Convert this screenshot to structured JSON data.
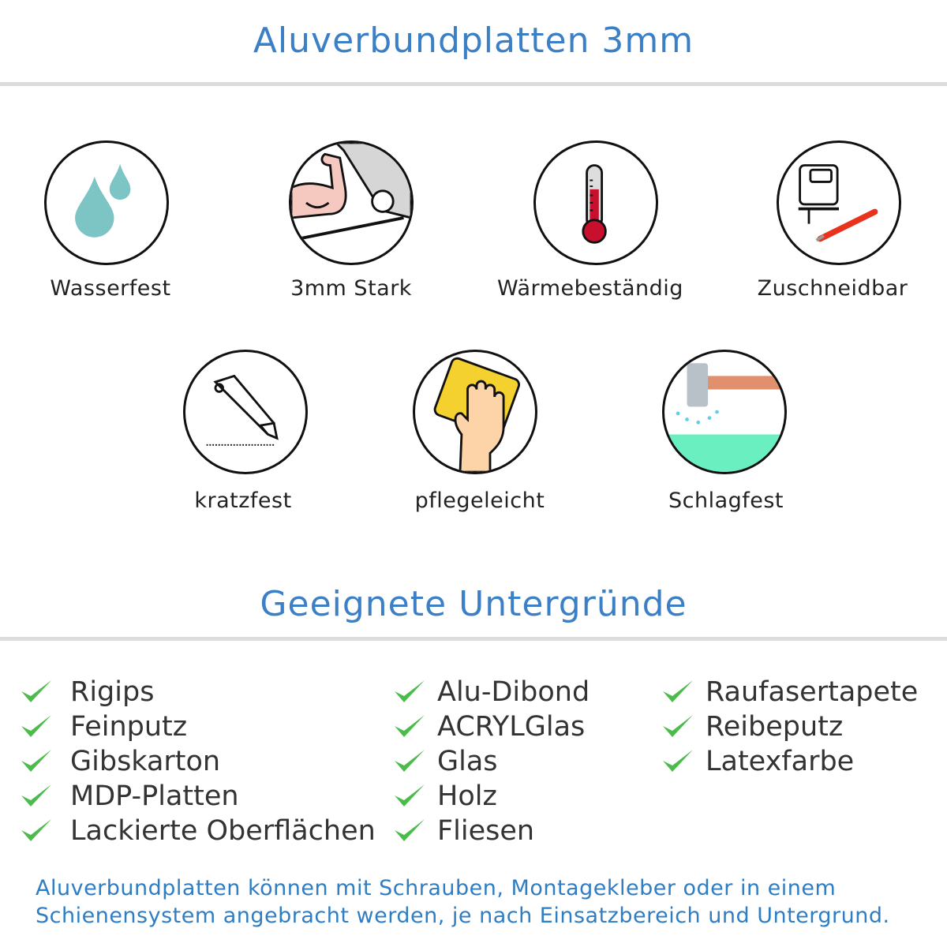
{
  "header": {
    "title": "Aluverbundplatten 3mm"
  },
  "features": [
    {
      "label": "Wasserfest",
      "icon": "water-drops-icon"
    },
    {
      "label": "3mm Stark",
      "icon": "strong-arm-icon"
    },
    {
      "label": "Wärmebeständig",
      "icon": "thermometer-icon"
    },
    {
      "label": "Zuschneidbar",
      "icon": "jigsaw-cutter-icon"
    },
    {
      "label": "kratzfest",
      "icon": "box-cutter-icon"
    },
    {
      "label": "pflegeleicht",
      "icon": "cleaning-hand-icon"
    },
    {
      "label": "Schlagfest",
      "icon": "hammer-icon"
    }
  ],
  "surfaces": {
    "title": "Geeignete Untergründe",
    "col1": [
      "Rigips",
      "Feinputz",
      "Gibskarton",
      "MDP-Platten",
      "Lackierte Oberflächen"
    ],
    "col2": [
      "Alu-Dibond",
      "ACRYLGlas",
      "Glas",
      "Holz",
      "Fliesen"
    ],
    "col3": [
      "Raufasertapete",
      "Reibeputz",
      "Latexfarbe"
    ]
  },
  "footer": {
    "line1": "Aluverbundplatten können mit Schrauben, Montagekleber oder in einem",
    "line2": "Schienensystem angebracht werden, je nach Einsatzbereich und Untergrund."
  },
  "colors": {
    "accent": "#3b7fc6",
    "check": "#4cbb4c"
  }
}
